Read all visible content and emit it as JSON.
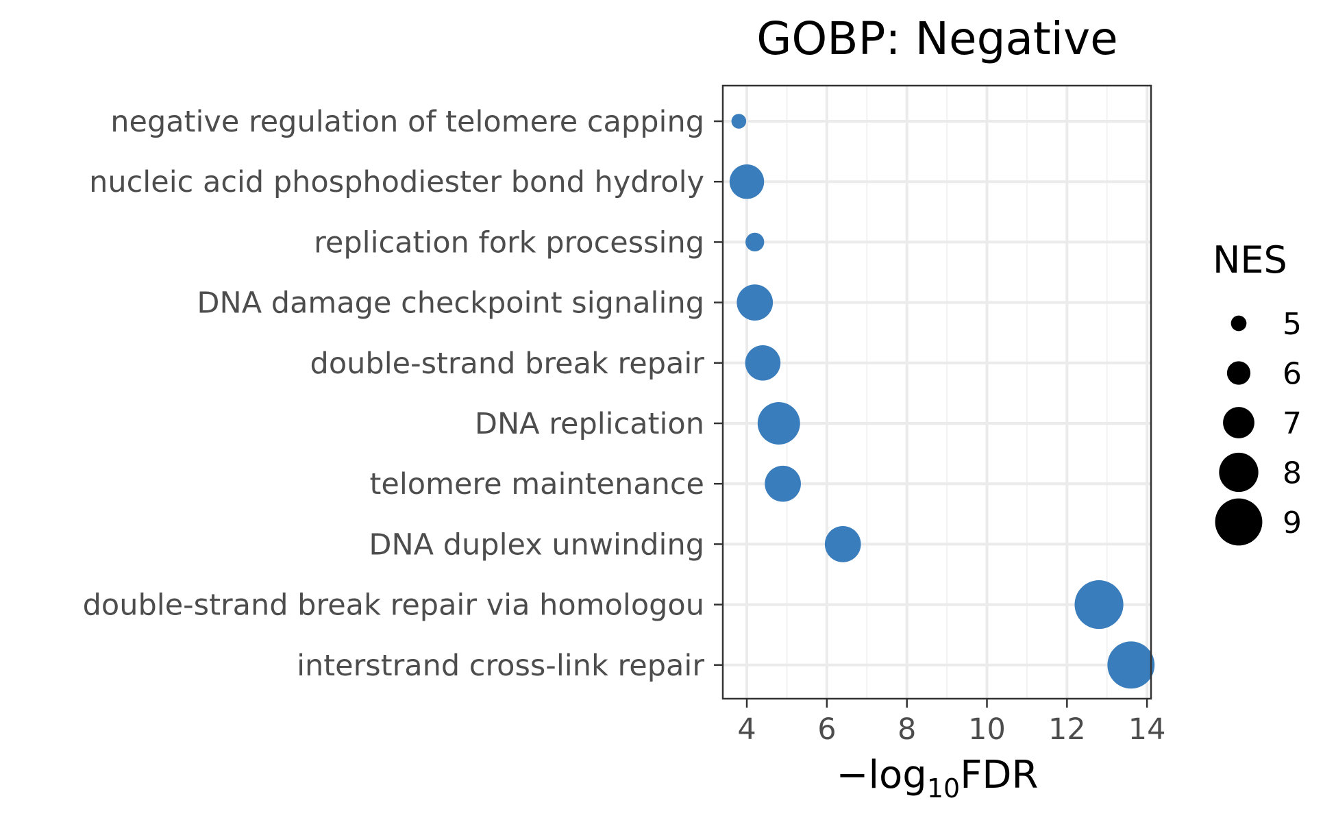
{
  "chart_data": {
    "type": "scatter",
    "title": "GOBP: Negative",
    "xlabel": {
      "prefix": "−log",
      "subscript": "10",
      "suffix": "FDR"
    },
    "ylabel": "",
    "xlim": [
      3.4,
      14.1
    ],
    "xticks": [
      4,
      6,
      8,
      10,
      12,
      14
    ],
    "grid": true,
    "categories": [
      "negative regulation of telomere capping",
      "nucleic acid phosphodiester bond hydroly",
      "replication fork processing",
      "DNA damage checkpoint signaling",
      "double-strand break repair",
      "DNA replication",
      "telomere maintenance",
      "DNA duplex unwinding",
      "double-strand break repair via homologou",
      "interstrand cross-link repair"
    ],
    "series": [
      {
        "x": [
          3.8,
          4.0,
          4.2,
          4.2,
          4.4,
          4.8,
          4.9,
          6.4,
          12.8,
          13.6
        ],
        "size": [
          4.9,
          7.4,
          5.4,
          7.6,
          7.5,
          8.4,
          7.6,
          7.6,
          9.2,
          9.0
        ]
      }
    ],
    "color": "#3a7dbc",
    "legend": {
      "title": "NES",
      "position": "right",
      "values": [
        5,
        6,
        7,
        8,
        9
      ]
    }
  }
}
